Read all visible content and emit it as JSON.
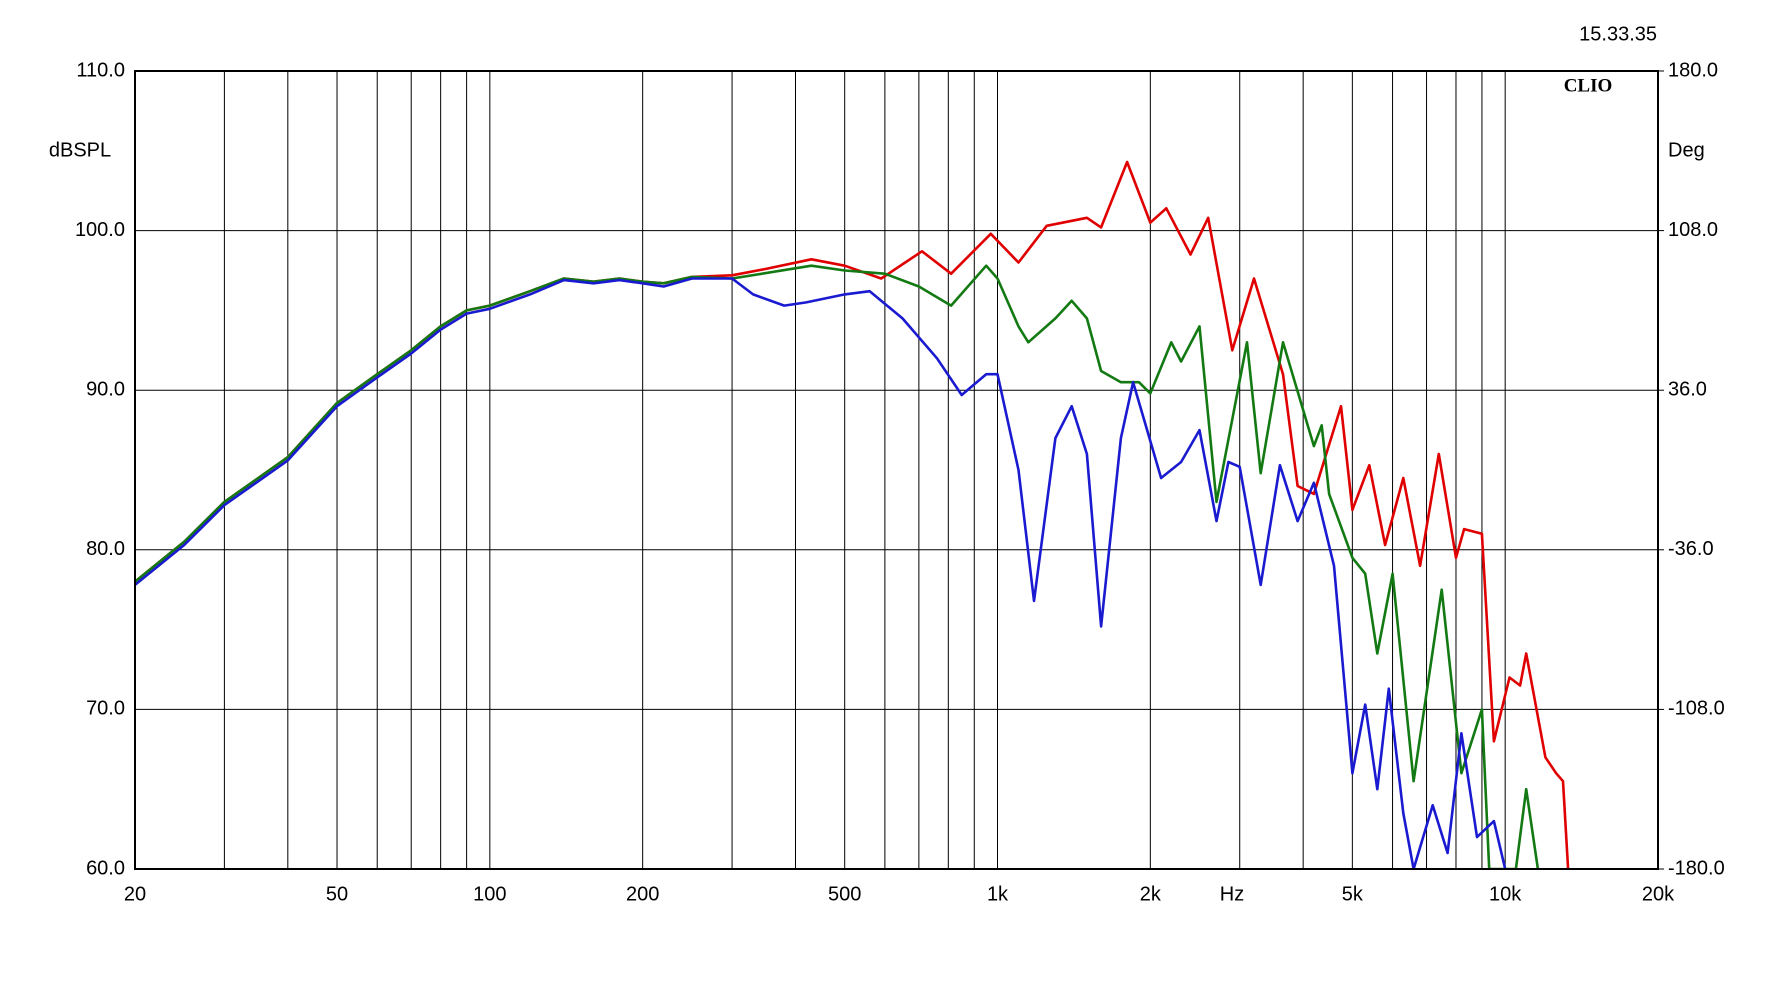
{
  "chart_data": {
    "type": "line",
    "timestamp": "15.33.35",
    "brand": "CLIO",
    "ylabel": "dBSPL",
    "y2label": "Deg",
    "xlabel": "Hz",
    "xscale": "log",
    "grid": true,
    "xlim": [
      20,
      20000
    ],
    "xticks": [
      20,
      50,
      100,
      200,
      500,
      {
        "value": 1000,
        "label": "1k"
      },
      {
        "value": 2000,
        "label": "2k"
      },
      {
        "value": 5000,
        "label": "5k"
      },
      {
        "value": 10000,
        "label": "10k"
      },
      {
        "value": 20000,
        "label": "20k"
      }
    ],
    "xgrid": [
      30,
      40,
      60,
      70,
      80,
      90,
      300,
      400,
      600,
      700,
      800,
      900,
      3000,
      4000,
      6000,
      7000,
      8000,
      9000
    ],
    "ylim": [
      60,
      110
    ],
    "yticks": [
      {
        "value": 60,
        "label": "60.0"
      },
      {
        "value": 70,
        "label": "70.0"
      },
      {
        "value": 80,
        "label": "80.0"
      },
      {
        "value": 90,
        "label": "90.0"
      },
      {
        "value": 100,
        "label": "100.0"
      },
      {
        "value": 110,
        "label": "110.0"
      }
    ],
    "y2lim": [
      -180,
      180
    ],
    "y2ticks": [
      {
        "value": -180,
        "label": "-180.0"
      },
      {
        "value": -108,
        "label": "-108.0"
      },
      {
        "value": -36,
        "label": "-36.0"
      },
      {
        "value": 36,
        "label": "36.0"
      },
      {
        "value": 108,
        "label": "108.0"
      },
      {
        "value": 180,
        "label": "180.0"
      }
    ],
    "series": [
      {
        "color": "#e00000",
        "x": [
          20,
          25,
          30,
          40,
          50,
          60,
          70,
          80,
          90,
          100,
          120,
          140,
          160,
          180,
          200,
          220,
          250,
          300,
          350,
          430,
          500,
          590,
          710,
          810,
          970,
          1100,
          1250,
          1500,
          1600,
          1800,
          2000,
          2150,
          2400,
          2600,
          2900,
          3200,
          3650,
          3900,
          4200,
          4750,
          5000,
          5400,
          5800,
          6300,
          6800,
          7400,
          8000,
          8300,
          9000,
          9500,
          10200,
          10700,
          11000,
          12000,
          12600,
          13000,
          13300
        ],
        "values": [
          78,
          80.5,
          83,
          85.8,
          89.2,
          91,
          92.5,
          94,
          95,
          95.3,
          96.2,
          97,
          96.8,
          97,
          96.8,
          96.7,
          97.1,
          97.2,
          97.6,
          98.2,
          97.8,
          97,
          98.7,
          97.3,
          99.8,
          98,
          100.3,
          100.8,
          100.2,
          104.3,
          100.5,
          101.4,
          98.5,
          100.8,
          92.5,
          97,
          91,
          84,
          83.5,
          89,
          82.5,
          85.3,
          80.3,
          84.5,
          79,
          86,
          79.5,
          81.3,
          81,
          68,
          72,
          71.5,
          73.5,
          67,
          66,
          65.5,
          60
        ]
      },
      {
        "color": "#137a13",
        "x": [
          20,
          25,
          30,
          40,
          50,
          60,
          70,
          80,
          90,
          100,
          120,
          140,
          160,
          180,
          200,
          220,
          250,
          300,
          430,
          500,
          600,
          700,
          810,
          950,
          1000,
          1100,
          1150,
          1300,
          1400,
          1500,
          1600,
          1750,
          1900,
          2000,
          2200,
          2300,
          2500,
          2700,
          3100,
          3300,
          3650,
          4200,
          4350,
          4500,
          5000,
          5300,
          5600,
          6000,
          6600,
          7500,
          8200,
          9000,
          9300,
          10500,
          11000,
          11600
        ],
        "values": [
          78,
          80.5,
          83,
          85.8,
          89.2,
          91,
          92.5,
          94,
          95,
          95.3,
          96.2,
          97,
          96.8,
          97,
          96.8,
          96.7,
          97.1,
          97,
          97.8,
          97.5,
          97.3,
          96.5,
          95.3,
          97.8,
          97,
          94,
          93,
          94.5,
          95.6,
          94.5,
          91.2,
          90.5,
          90.5,
          89.8,
          93,
          91.8,
          94,
          83,
          93,
          84.8,
          93,
          86.5,
          87.8,
          83.5,
          79.5,
          78.5,
          73.5,
          78.5,
          65.5,
          77.5,
          66,
          70,
          60,
          60,
          65,
          60
        ]
      },
      {
        "color": "#1a1ad0",
        "x": [
          20,
          25,
          30,
          40,
          50,
          60,
          70,
          80,
          90,
          100,
          120,
          140,
          160,
          180,
          200,
          220,
          250,
          300,
          330,
          380,
          420,
          500,
          560,
          650,
          760,
          850,
          950,
          1000,
          1100,
          1180,
          1300,
          1400,
          1500,
          1600,
          1750,
          1850,
          1950,
          2100,
          2300,
          2500,
          2700,
          2850,
          3000,
          3300,
          3600,
          3900,
          4200,
          4600,
          5000,
          5300,
          5600,
          5900,
          6300,
          6600,
          7200,
          7700,
          8200,
          8800,
          9500,
          10000
        ],
        "values": [
          77.8,
          80.3,
          82.8,
          85.6,
          89,
          90.8,
          92.3,
          93.8,
          94.8,
          95.1,
          96,
          96.9,
          96.7,
          96.9,
          96.7,
          96.5,
          97,
          97,
          96,
          95.3,
          95.5,
          96,
          96.2,
          94.5,
          92,
          89.7,
          91,
          91,
          85,
          76.8,
          87,
          89,
          86,
          75.2,
          87,
          90.5,
          88,
          84.5,
          85.5,
          87.5,
          81.8,
          85.5,
          85.2,
          77.8,
          85.3,
          81.8,
          84.2,
          79,
          66,
          70.3,
          65,
          71.3,
          63.5,
          60,
          64,
          61,
          68.5,
          62,
          63,
          60
        ]
      }
    ]
  }
}
